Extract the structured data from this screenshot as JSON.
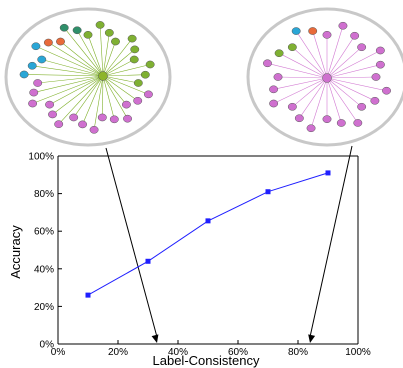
{
  "chart_data": {
    "type": "line",
    "x": [
      10,
      30,
      50,
      70,
      90
    ],
    "values": [
      26,
      44,
      65.5,
      81,
      91
    ],
    "xlabel": "Label-Consistency",
    "ylabel": "Accuracy",
    "xlim": [
      0,
      100
    ],
    "ylim": [
      0,
      100
    ],
    "x_ticks": [
      "0%",
      "20%",
      "40%",
      "60%",
      "80%",
      "100%"
    ],
    "y_ticks": [
      "0%",
      "20%",
      "40%",
      "60%",
      "80%",
      "100%"
    ],
    "line_color": "#1f1fff",
    "marker": "square",
    "grid": false,
    "insets": [
      {
        "label_consistency": 33,
        "center_color": "#8db52a",
        "edge_color": "#7fb02a",
        "node_colors": [
          "#7fb032",
          "#7fb032",
          "#7fb032",
          "#7fb032",
          "#7fb032",
          "#7fb032",
          "#7fb032",
          "#7fb032",
          "#7fb032",
          "#7fb032",
          "#cf70cf",
          "#cf70cf",
          "#cf70cf",
          "#cf70cf",
          "#cf70cf",
          "#cf70cf",
          "#cf70cf",
          "#cf70cf",
          "#cf70cf",
          "#cf70cf",
          "#cf70cf",
          "#cf70cf",
          "#cf70cf",
          "#cf70cf",
          "#cf70cf",
          "#2aa6d6",
          "#2aa6d6",
          "#2aa6d6",
          "#2aa6d6",
          "#e86a3a",
          "#e86a3a",
          "#2f8f6a",
          "#2f8f6a"
        ]
      },
      {
        "label_consistency": 84,
        "center_color": "#cf70cf",
        "edge_color": "#d27ad2",
        "node_colors": [
          "#cf70cf",
          "#cf70cf",
          "#cf70cf",
          "#cf70cf",
          "#cf70cf",
          "#cf70cf",
          "#cf70cf",
          "#cf70cf",
          "#cf70cf",
          "#cf70cf",
          "#cf70cf",
          "#cf70cf",
          "#cf70cf",
          "#cf70cf",
          "#cf70cf",
          "#cf70cf",
          "#cf70cf",
          "#cf70cf",
          "#cf70cf",
          "#cf70cf",
          "#7fb032",
          "#7fb032",
          "#2aa6d6",
          "#e86a3a"
        ]
      }
    ]
  }
}
